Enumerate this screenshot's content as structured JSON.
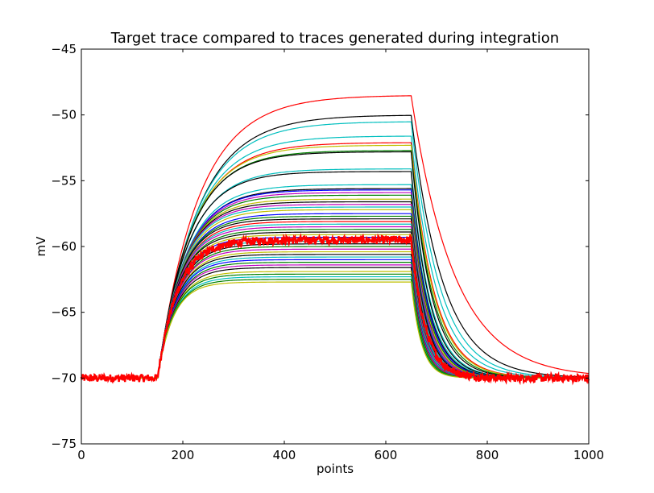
{
  "chart_data": {
    "type": "line",
    "title": "Target trace compared to traces generated during integration",
    "xlabel": "points",
    "ylabel": "mV",
    "xlim": [
      0,
      1000
    ],
    "ylim": [
      -75,
      -45
    ],
    "xticks": [
      0,
      200,
      400,
      600,
      800,
      1000
    ],
    "yticks": [
      -75,
      -70,
      -65,
      -60,
      -55,
      -50,
      -45
    ],
    "xtick_labels": [
      "0",
      "200",
      "400",
      "600",
      "800",
      "1000"
    ],
    "ytick_labels": [
      "−75",
      "−70",
      "−65",
      "−60",
      "−55",
      "−50",
      "−45"
    ],
    "grid": false,
    "legend": "none",
    "stimulus": {
      "onset_point": 150,
      "offset_point": 650,
      "rest_mV": -70
    },
    "target_trace": {
      "color": "#ff0000",
      "plateau_mV": -59.5,
      "tau_rise_points": 40,
      "tau_decay_points": 28,
      "noise_mV": 0.15
    },
    "generated_traces": [
      {
        "color": "#ff0000",
        "plateau_mV": -48.5,
        "tau_rise_points": 80,
        "tau_decay_points": 85
      },
      {
        "color": "#000000",
        "plateau_mV": -50.0,
        "tau_rise_points": 78,
        "tau_decay_points": 62
      },
      {
        "color": "#00bfbf",
        "plateau_mV": -50.5,
        "tau_rise_points": 75,
        "tau_decay_points": 55
      },
      {
        "color": "#00bfbf",
        "plateau_mV": -51.6,
        "tau_rise_points": 70,
        "tau_decay_points": 50
      },
      {
        "color": "#ff0000",
        "plateau_mV": -52.1,
        "tau_rise_points": 68,
        "tau_decay_points": 45
      },
      {
        "color": "#bfbf00",
        "plateau_mV": -52.3,
        "tau_rise_points": 66,
        "tau_decay_points": 44
      },
      {
        "color": "#008000",
        "plateau_mV": -52.7,
        "tau_rise_points": 64,
        "tau_decay_points": 42
      },
      {
        "color": "#000000",
        "plateau_mV": -52.8,
        "tau_rise_points": 63,
        "tau_decay_points": 40
      },
      {
        "color": "#00bfbf",
        "plateau_mV": -54.1,
        "tau_rise_points": 60,
        "tau_decay_points": 38
      },
      {
        "color": "#000000",
        "plateau_mV": -54.3,
        "tau_rise_points": 58,
        "tau_decay_points": 37
      },
      {
        "color": "#00bfbf",
        "plateau_mV": -55.3,
        "tau_rise_points": 56,
        "tau_decay_points": 36
      },
      {
        "color": "#000000",
        "plateau_mV": -55.6,
        "tau_rise_points": 55,
        "tau_decay_points": 35
      },
      {
        "color": "#0000ff",
        "plateau_mV": -55.7,
        "tau_rise_points": 54,
        "tau_decay_points": 34
      },
      {
        "color": "#bf00bf",
        "plateau_mV": -55.9,
        "tau_rise_points": 53,
        "tau_decay_points": 33
      },
      {
        "color": "#008000",
        "plateau_mV": -56.1,
        "tau_rise_points": 52,
        "tau_decay_points": 33
      },
      {
        "color": "#bfbf00",
        "plateau_mV": -56.4,
        "tau_rise_points": 50,
        "tau_decay_points": 32
      },
      {
        "color": "#000000",
        "plateau_mV": -56.6,
        "tau_rise_points": 49,
        "tau_decay_points": 31
      },
      {
        "color": "#bf00bf",
        "plateau_mV": -56.8,
        "tau_rise_points": 48,
        "tau_decay_points": 31
      },
      {
        "color": "#00bfbf",
        "plateau_mV": -57.0,
        "tau_rise_points": 47,
        "tau_decay_points": 30
      },
      {
        "color": "#bfbf00",
        "plateau_mV": -57.2,
        "tau_rise_points": 47,
        "tau_decay_points": 30
      },
      {
        "color": "#0000ff",
        "plateau_mV": -57.5,
        "tau_rise_points": 46,
        "tau_decay_points": 30
      },
      {
        "color": "#008000",
        "plateau_mV": -57.7,
        "tau_rise_points": 45,
        "tau_decay_points": 29
      },
      {
        "color": "#000000",
        "plateau_mV": -57.9,
        "tau_rise_points": 44,
        "tau_decay_points": 29
      },
      {
        "color": "#ff0000",
        "plateau_mV": -58.1,
        "tau_rise_points": 44,
        "tau_decay_points": 28
      },
      {
        "color": "#00bfbf",
        "plateau_mV": -58.3,
        "tau_rise_points": 43,
        "tau_decay_points": 28
      },
      {
        "color": "#bf00bf",
        "plateau_mV": -58.5,
        "tau_rise_points": 42,
        "tau_decay_points": 27
      },
      {
        "color": "#008000",
        "plateau_mV": -58.7,
        "tau_rise_points": 42,
        "tau_decay_points": 27
      },
      {
        "color": "#000000",
        "plateau_mV": -58.9,
        "tau_rise_points": 41,
        "tau_decay_points": 27
      },
      {
        "color": "#bfbf00",
        "plateau_mV": -59.1,
        "tau_rise_points": 41,
        "tau_decay_points": 26
      },
      {
        "color": "#0000ff",
        "plateau_mV": -59.3,
        "tau_rise_points": 40,
        "tau_decay_points": 26
      },
      {
        "color": "#00bfbf",
        "plateau_mV": -59.6,
        "tau_rise_points": 40,
        "tau_decay_points": 26
      },
      {
        "color": "#000000",
        "plateau_mV": -59.8,
        "tau_rise_points": 39,
        "tau_decay_points": 25
      },
      {
        "color": "#008000",
        "plateau_mV": -60.0,
        "tau_rise_points": 39,
        "tau_decay_points": 25
      },
      {
        "color": "#bf00bf",
        "plateau_mV": -60.2,
        "tau_rise_points": 38,
        "tau_decay_points": 25
      },
      {
        "color": "#bfbf00",
        "plateau_mV": -60.4,
        "tau_rise_points": 38,
        "tau_decay_points": 24
      },
      {
        "color": "#000000",
        "plateau_mV": -60.6,
        "tau_rise_points": 37,
        "tau_decay_points": 24
      },
      {
        "color": "#00bfbf",
        "plateau_mV": -60.8,
        "tau_rise_points": 37,
        "tau_decay_points": 24
      },
      {
        "color": "#0000ff",
        "plateau_mV": -61.0,
        "tau_rise_points": 36,
        "tau_decay_points": 23
      },
      {
        "color": "#008000",
        "plateau_mV": -61.2,
        "tau_rise_points": 36,
        "tau_decay_points": 23
      },
      {
        "color": "#bf00bf",
        "plateau_mV": -61.4,
        "tau_rise_points": 35,
        "tau_decay_points": 23
      },
      {
        "color": "#000000",
        "plateau_mV": -61.6,
        "tau_rise_points": 35,
        "tau_decay_points": 22
      },
      {
        "color": "#bfbf00",
        "plateau_mV": -61.9,
        "tau_rise_points": 34,
        "tau_decay_points": 22
      },
      {
        "color": "#008000",
        "plateau_mV": -62.1,
        "tau_rise_points": 33,
        "tau_decay_points": 22
      },
      {
        "color": "#00bfbf",
        "plateau_mV": -62.3,
        "tau_rise_points": 33,
        "tau_decay_points": 21
      },
      {
        "color": "#008000",
        "plateau_mV": -62.5,
        "tau_rise_points": 32,
        "tau_decay_points": 21
      },
      {
        "color": "#bfbf00",
        "plateau_mV": -62.7,
        "tau_rise_points": 31,
        "tau_decay_points": 20
      }
    ]
  }
}
